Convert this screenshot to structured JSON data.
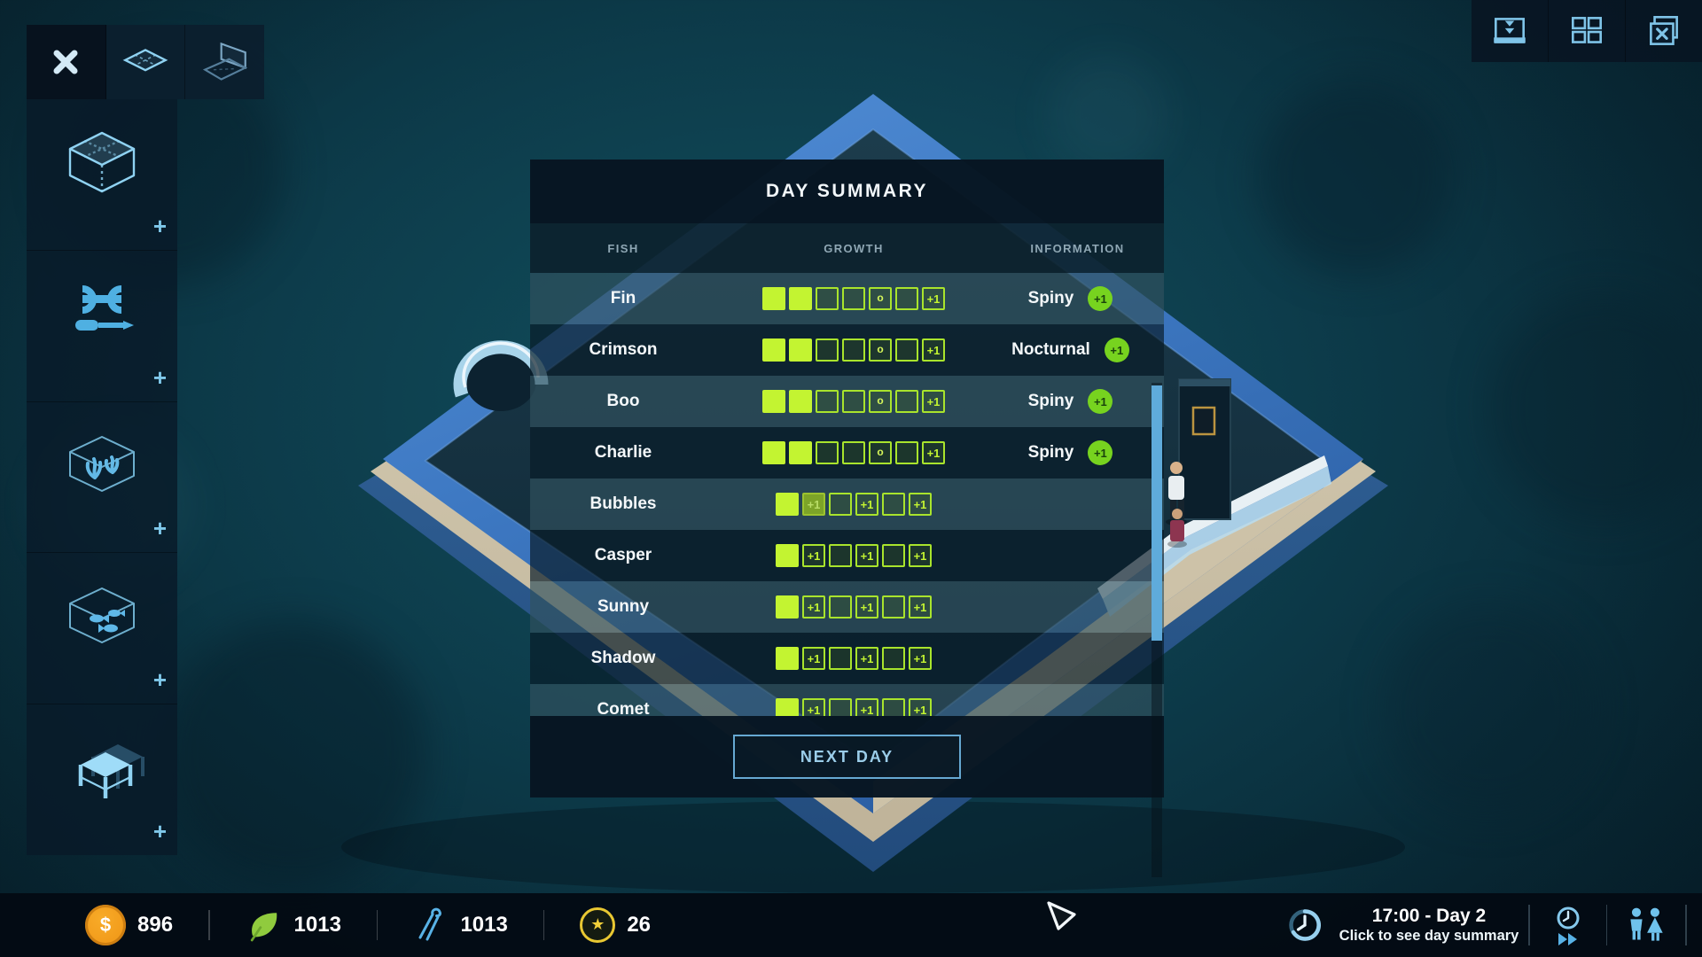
{
  "colors": {
    "accent": "#7fc8ea",
    "accent_bright": "#a8d9f2",
    "lime": "#c3f431",
    "lime_border": "#a9e42c",
    "lime_dim": "#7da428",
    "badge_green": "#77d31f",
    "badge_text": "#1a430c",
    "coin_orange": "#f5a01f",
    "leaf_green": "#90cb3e",
    "science_blue": "#58b2e6",
    "star_yellow": "#e9c832",
    "scrollbar": "#5fabdb",
    "panel": "#0a1b29",
    "button_border": "#66a9d3",
    "button_text": "#9bcde9"
  },
  "icons": {
    "money_glyph": "$",
    "star_glyph": "★",
    "add_glyph": "+"
  },
  "toolbar_top_left": {
    "buttons": [
      "close",
      "floor-tile-tool",
      "wall-tool"
    ]
  },
  "toolbar_top_right": {
    "buttons": [
      "storage",
      "overview-grid",
      "close-windows"
    ]
  },
  "sidebar": {
    "add_label": "+",
    "sections": [
      {
        "name": "tanks",
        "icon": "tank-icon"
      },
      {
        "name": "equipment",
        "icon": "tools-icon"
      },
      {
        "name": "plants",
        "icon": "coral-tank-icon"
      },
      {
        "name": "animals",
        "icon": "fish-tank-icon"
      },
      {
        "name": "furniture",
        "icon": "table-icon"
      }
    ]
  },
  "day_summary": {
    "title": "DAY SUMMARY",
    "columns": {
      "fish": "FISH",
      "growth": "GROWTH",
      "information": "INFORMATION"
    },
    "rows": [
      {
        "fish": "Fin",
        "growth": [
          {
            "state": "filled"
          },
          {
            "state": "filled"
          },
          {
            "state": "empty"
          },
          {
            "state": "empty"
          },
          {
            "state": "dot",
            "text": "o"
          },
          {
            "state": "empty"
          },
          {
            "state": "plus",
            "text": "+1"
          }
        ],
        "info": {
          "label": "Spiny",
          "badge": "+1"
        }
      },
      {
        "fish": "Crimson",
        "growth": [
          {
            "state": "filled"
          },
          {
            "state": "filled"
          },
          {
            "state": "empty"
          },
          {
            "state": "empty"
          },
          {
            "state": "dot",
            "text": "o"
          },
          {
            "state": "empty"
          },
          {
            "state": "plus",
            "text": "+1"
          }
        ],
        "info": {
          "label": "Nocturnal",
          "badge": "+1"
        }
      },
      {
        "fish": "Boo",
        "growth": [
          {
            "state": "filled"
          },
          {
            "state": "filled"
          },
          {
            "state": "empty"
          },
          {
            "state": "empty"
          },
          {
            "state": "dot",
            "text": "o"
          },
          {
            "state": "empty"
          },
          {
            "state": "plus",
            "text": "+1"
          }
        ],
        "info": {
          "label": "Spiny",
          "badge": "+1"
        }
      },
      {
        "fish": "Charlie",
        "growth": [
          {
            "state": "filled"
          },
          {
            "state": "filled"
          },
          {
            "state": "empty"
          },
          {
            "state": "empty"
          },
          {
            "state": "dot",
            "text": "o"
          },
          {
            "state": "empty"
          },
          {
            "state": "plus",
            "text": "+1"
          }
        ],
        "info": {
          "label": "Spiny",
          "badge": "+1"
        }
      },
      {
        "fish": "Bubbles",
        "growth": [
          {
            "state": "filled"
          },
          {
            "state": "dim",
            "text": "+1"
          },
          {
            "state": "empty"
          },
          {
            "state": "plus",
            "text": "+1"
          },
          {
            "state": "empty"
          },
          {
            "state": "plus",
            "text": "+1"
          }
        ],
        "info": null
      },
      {
        "fish": "Casper",
        "growth": [
          {
            "state": "filled"
          },
          {
            "state": "plus",
            "text": "+1"
          },
          {
            "state": "empty"
          },
          {
            "state": "plus",
            "text": "+1"
          },
          {
            "state": "empty"
          },
          {
            "state": "plus",
            "text": "+1"
          }
        ],
        "info": null
      },
      {
        "fish": "Sunny",
        "growth": [
          {
            "state": "filled"
          },
          {
            "state": "plus",
            "text": "+1"
          },
          {
            "state": "empty"
          },
          {
            "state": "plus",
            "text": "+1"
          },
          {
            "state": "empty"
          },
          {
            "state": "plus",
            "text": "+1"
          }
        ],
        "info": null
      },
      {
        "fish": "Shadow",
        "growth": [
          {
            "state": "filled"
          },
          {
            "state": "plus",
            "text": "+1"
          },
          {
            "state": "empty"
          },
          {
            "state": "plus",
            "text": "+1"
          },
          {
            "state": "empty"
          },
          {
            "state": "plus",
            "text": "+1"
          }
        ],
        "info": null
      },
      {
        "fish": "Comet",
        "growth": [
          {
            "state": "filled"
          },
          {
            "state": "plus",
            "text": "+1"
          },
          {
            "state": "empty"
          },
          {
            "state": "plus",
            "text": "+1"
          },
          {
            "state": "empty"
          },
          {
            "state": "plus",
            "text": "+1"
          }
        ],
        "info": null
      }
    ],
    "next_day_label": "NEXT DAY"
  },
  "status_bar": {
    "resources": [
      {
        "name": "money",
        "icon": "coin-icon",
        "value": "896"
      },
      {
        "name": "plant-points",
        "icon": "leaf-icon",
        "value": "1013"
      },
      {
        "name": "science-points",
        "icon": "tool-icon",
        "value": "1013"
      },
      {
        "name": "prestige",
        "icon": "star-icon",
        "value": "26"
      }
    ],
    "clock": {
      "time": "17:00 - Day 2",
      "hint": "Click to see day summary"
    }
  }
}
